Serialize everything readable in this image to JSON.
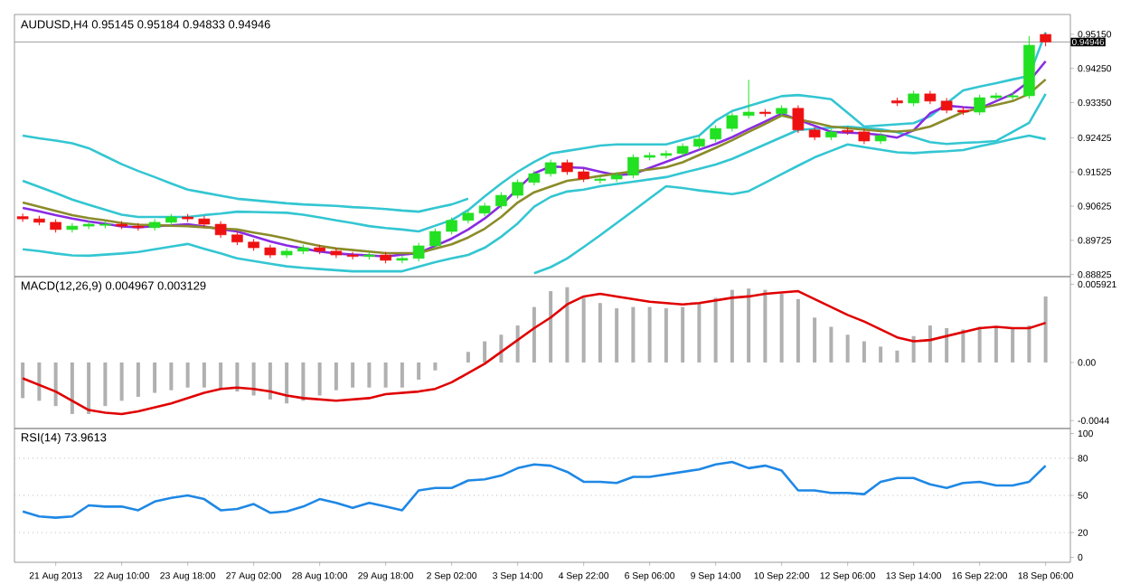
{
  "chart_data": [
    {
      "type": "candlestick",
      "title": "AUDUSD,H4 0.95145 0.95184 0.94833 0.94946",
      "categories": [
        null,
        null,
        null,
        null,
        null,
        null,
        null,
        null,
        null,
        null,
        null,
        null,
        null,
        null,
        null,
        null,
        null,
        null,
        null,
        null,
        null,
        null,
        null,
        null,
        null,
        null,
        null,
        null,
        null,
        null,
        null,
        null,
        null,
        null,
        null,
        null,
        null,
        null,
        null,
        null,
        null,
        null,
        null,
        null,
        null,
        null,
        null,
        null,
        null,
        null,
        null,
        null,
        null,
        null,
        null,
        null,
        null,
        null,
        null,
        null,
        null,
        null,
        null
      ],
      "ohlc": [
        [
          0.9035,
          0.9043,
          0.9021,
          0.9029
        ],
        [
          0.9029,
          0.9037,
          0.9012,
          0.902
        ],
        [
          0.902,
          0.9028,
          0.8993,
          0.9001
        ],
        [
          0.9001,
          0.9018,
          0.8993,
          0.901
        ],
        [
          0.901,
          0.9023,
          0.9002,
          0.9015
        ],
        [
          0.9012,
          0.9023,
          0.9004,
          0.9015
        ],
        [
          0.9015,
          0.9023,
          0.9002,
          0.901
        ],
        [
          0.901,
          0.9018,
          0.8998,
          0.9006
        ],
        [
          0.9006,
          0.9028,
          0.8998,
          0.902
        ],
        [
          0.902,
          0.9042,
          0.9012,
          0.9034
        ],
        [
          0.9034,
          0.9042,
          0.9021,
          0.9029
        ],
        [
          0.9029,
          0.9037,
          0.9007,
          0.9015
        ],
        [
          0.9015,
          0.9023,
          0.8979,
          0.8987
        ],
        [
          0.8987,
          0.8995,
          0.896,
          0.8968
        ],
        [
          0.8968,
          0.8976,
          0.8945,
          0.8953
        ],
        [
          0.8953,
          0.8961,
          0.8926,
          0.8934
        ],
        [
          0.8934,
          0.8952,
          0.8926,
          0.8944
        ],
        [
          0.8944,
          0.8961,
          0.8936,
          0.8953
        ],
        [
          0.8953,
          0.8961,
          0.8936,
          0.8944
        ],
        [
          0.8944,
          0.8952,
          0.8926,
          0.8934
        ],
        [
          0.8934,
          0.8942,
          0.8922,
          0.893
        ],
        [
          0.893,
          0.8942,
          0.8922,
          0.8934
        ],
        [
          0.8934,
          0.8942,
          0.8912,
          0.892
        ],
        [
          0.892,
          0.8933,
          0.8912,
          0.8925
        ],
        [
          0.8925,
          0.8966,
          0.8917,
          0.8958
        ],
        [
          0.8958,
          0.9004,
          0.895,
          0.8996
        ],
        [
          0.8996,
          0.9033,
          0.8988,
          0.9025
        ],
        [
          0.9025,
          0.9052,
          0.9017,
          0.9044
        ],
        [
          0.9044,
          0.9071,
          0.9036,
          0.9063
        ],
        [
          0.9063,
          0.9099,
          0.9055,
          0.9091
        ],
        [
          0.9091,
          0.9133,
          0.9083,
          0.9125
        ],
        [
          0.9125,
          0.9156,
          0.9117,
          0.9148
        ],
        [
          0.9148,
          0.9185,
          0.914,
          0.9177
        ],
        [
          0.9177,
          0.9185,
          0.9145,
          0.9153
        ],
        [
          0.9153,
          0.9161,
          0.9126,
          0.9134
        ],
        [
          0.913,
          0.9142,
          0.9122,
          0.9134
        ],
        [
          0.9134,
          0.9152,
          0.9126,
          0.9144
        ],
        [
          0.9144,
          0.9199,
          0.9136,
          0.9191
        ],
        [
          0.9191,
          0.9204,
          0.9183,
          0.9196
        ],
        [
          0.9196,
          0.9209,
          0.9188,
          0.9201
        ],
        [
          0.9201,
          0.9228,
          0.9193,
          0.922
        ],
        [
          0.922,
          0.9247,
          0.9212,
          0.9239
        ],
        [
          0.9239,
          0.9275,
          0.9231,
          0.9267
        ],
        [
          0.9267,
          0.9309,
          0.9259,
          0.9301
        ],
        [
          0.9301,
          0.9395,
          0.9293,
          0.931
        ],
        [
          0.931,
          0.9318,
          0.9298,
          0.9306
        ],
        [
          0.9306,
          0.9328,
          0.9298,
          0.932
        ],
        [
          0.932,
          0.9328,
          0.9255,
          0.9263
        ],
        [
          0.9263,
          0.9271,
          0.9236,
          0.9244
        ],
        [
          0.9244,
          0.9266,
          0.9236,
          0.9258
        ],
        [
          0.9262,
          0.927,
          0.925,
          0.9258
        ],
        [
          0.9258,
          0.9266,
          0.9226,
          0.9234
        ],
        [
          0.9234,
          0.9256,
          0.9226,
          0.9248
        ],
        [
          0.934,
          0.9348,
          0.9326,
          0.9334
        ],
        [
          0.9334,
          0.9366,
          0.9326,
          0.9358
        ],
        [
          0.9358,
          0.9366,
          0.9331,
          0.9339
        ],
        [
          0.9339,
          0.9347,
          0.9307,
          0.9315
        ],
        [
          0.9315,
          0.9323,
          0.9302,
          0.931
        ],
        [
          0.931,
          0.9356,
          0.9302,
          0.9348
        ],
        [
          0.9348,
          0.9361,
          0.934,
          0.9353
        ],
        [
          0.935,
          0.9361,
          0.9342,
          0.9353
        ],
        [
          0.9353,
          0.951,
          0.9345,
          0.9486
        ],
        [
          0.95145,
          0.95184,
          0.94833,
          0.94946
        ]
      ],
      "colors": [
        "#ee1111",
        "#ee1111",
        "#ee1111",
        "#22e022",
        "#22e022",
        "#22e022",
        "#ee1111",
        "#ee1111",
        "#22e022",
        "#22e022",
        "#ee1111",
        "#ee1111",
        "#ee1111",
        "#ee1111",
        "#ee1111",
        "#ee1111",
        "#22e022",
        "#22e022",
        "#ee1111",
        "#ee1111",
        "#ee1111",
        "#22e022",
        "#ee1111",
        "#22e022",
        "#22e022",
        "#22e022",
        "#22e022",
        "#22e022",
        "#22e022",
        "#22e022",
        "#22e022",
        "#22e022",
        "#22e022",
        "#ee1111",
        "#ee1111",
        "#22e022",
        "#22e022",
        "#22e022",
        "#22e022",
        "#22e022",
        "#22e022",
        "#22e022",
        "#22e022",
        "#22e022",
        "#22e022",
        "#ee1111",
        "#22e022",
        "#ee1111",
        "#ee1111",
        "#22e022",
        "#ee1111",
        "#ee1111",
        "#22e022",
        "#ee1111",
        "#22e022",
        "#ee1111",
        "#ee1111",
        "#ee1111",
        "#22e022",
        "#22e022",
        "#22e022",
        "#22e022",
        "#ee1111"
      ],
      "series": [
        {
          "type": "line",
          "color": "#33c6d2",
          "values": [
            0.9248,
            0.9241,
            0.9235,
            0.9228,
            0.9215,
            0.9194,
            0.9173,
            0.9155,
            0.9139,
            0.9122,
            0.9106,
            0.9098,
            0.909,
            0.9082,
            0.9078,
            0.9074,
            0.907,
            0.9067,
            0.9065,
            0.9063,
            0.906,
            0.9058,
            0.9055,
            0.9051,
            0.9048,
            0.9058,
            0.9067,
            0.9082,
            null,
            null,
            null,
            null,
            null,
            null,
            null,
            null,
            null,
            null,
            null,
            null,
            null,
            null,
            null,
            null,
            null,
            null,
            null,
            null,
            null,
            null,
            null,
            null,
            null,
            null,
            null,
            null,
            null,
            null,
            null,
            null,
            null,
            null,
            null
          ]
        },
        {
          "type": "line",
          "color": "#33c6d2",
          "values": [
            0.9129,
            0.9113,
            0.9097,
            0.908,
            0.9066,
            0.9053,
            0.904,
            0.9034,
            0.9034,
            0.9034,
            0.9034,
            0.9039,
            0.9043,
            0.9048,
            0.9047,
            0.9046,
            0.9045,
            0.904,
            0.9033,
            0.9025,
            0.9018,
            0.901,
            0.9005,
            0.9001,
            0.8996,
            0.9011,
            0.9026,
            0.9052,
            0.9088,
            0.9122,
            0.9153,
            0.9179,
            0.9201,
            0.9208,
            0.9215,
            0.9222,
            0.9225,
            0.9225,
            0.9225,
            0.9225,
            0.9237,
            0.9248,
            0.9287,
            0.9313,
            0.9326,
            0.9339,
            0.9352,
            0.9355,
            0.935,
            0.9344,
            0.9308,
            0.9272,
            0.9275,
            0.9278,
            0.9281,
            0.9299,
            0.9333,
            0.9367,
            0.9377,
            0.9386,
            0.9396,
            0.9405,
            0.952
          ]
        },
        {
          "type": "line",
          "color": "#33c6d2",
          "values": [
            0.8949,
            0.8944,
            0.8938,
            0.8933,
            0.8932,
            0.8935,
            0.8938,
            0.8942,
            0.8949,
            0.8956,
            0.8963,
            0.895,
            0.8938,
            0.8925,
            0.8918,
            0.8911,
            0.8904,
            0.89,
            0.8897,
            0.8894,
            0.8891,
            0.8891,
            0.8891,
            0.8891,
            0.8903,
            0.8915,
            0.8925,
            0.8934,
            0.8953,
            0.8982,
            0.9017,
            0.9061,
            0.9087,
            0.9101,
            0.9106,
            0.9115,
            0.9121,
            0.9127,
            0.9133,
            0.9139,
            0.915,
            0.9161,
            0.9172,
            0.9187,
            0.9206,
            0.9225,
            0.9244,
            0.9263,
            0.9266,
            0.9269,
            0.9272,
            0.9268,
            0.9265,
            0.9257,
            0.9244,
            0.9231,
            0.9226,
            0.9229,
            0.9231,
            0.9234,
            0.9258,
            0.9282,
            0.9358
          ]
        },
        {
          "type": "line",
          "color": "#33c6d2",
          "values": [
            null,
            null,
            null,
            null,
            null,
            null,
            null,
            null,
            null,
            null,
            null,
            null,
            null,
            null,
            null,
            null,
            null,
            null,
            null,
            null,
            null,
            null,
            null,
            null,
            null,
            null,
            null,
            null,
            null,
            null,
            null,
            0.8886,
            0.8902,
            0.8925,
            0.8955,
            0.8986,
            0.9018,
            0.905,
            0.9083,
            0.9115,
            0.911,
            0.9104,
            0.9099,
            0.9094,
            0.9102,
            0.9124,
            0.9147,
            0.9169,
            0.9191,
            0.9208,
            0.9225,
            0.9218,
            0.9211,
            0.9204,
            0.9202,
            0.9205,
            0.9207,
            0.921,
            0.922,
            0.9229,
            0.9239,
            0.9248,
            0.9239
          ]
        },
        {
          "type": "line",
          "color": "#8a2be2",
          "values": [
            0.9058,
            0.9049,
            0.9039,
            0.903,
            0.9022,
            0.9016,
            0.9009,
            0.9007,
            0.901,
            0.9012,
            0.9015,
            0.9009,
            0.9002,
            0.8996,
            0.8983,
            0.897,
            0.8959,
            0.8951,
            0.8943,
            0.8938,
            0.8935,
            0.8933,
            0.893,
            0.8935,
            0.8939,
            0.8958,
            0.8977,
            0.9001,
            0.903,
            0.9065,
            0.9108,
            0.9149,
            0.9167,
            0.9165,
            0.9163,
            0.9153,
            0.9144,
            0.9147,
            0.9163,
            0.9179,
            0.9195,
            0.9211,
            0.9226,
            0.9244,
            0.9265,
            0.9285,
            0.9306,
            0.929,
            0.9274,
            0.9258,
            0.9256,
            0.9254,
            0.925,
            0.9243,
            0.9262,
            0.9307,
            0.9327,
            0.9323,
            0.932,
            0.9339,
            0.9358,
            0.9391,
            0.9444
          ]
        },
        {
          "type": "line",
          "color": "#8b8b2a",
          "values": [
            0.9072,
            0.9061,
            0.905,
            0.9039,
            0.9031,
            0.9025,
            0.9018,
            0.9014,
            0.9013,
            0.9011,
            0.901,
            0.9007,
            0.9004,
            0.9001,
            0.8993,
            0.8986,
            0.8977,
            0.8967,
            0.8958,
            0.8951,
            0.8947,
            0.8943,
            0.8939,
            0.8939,
            0.8939,
            0.8951,
            0.8962,
            0.898,
            0.9003,
            0.9034,
            0.9072,
            0.9099,
            0.9114,
            0.9129,
            0.9135,
            0.9142,
            0.9148,
            0.9154,
            0.9159,
            0.9165,
            0.9178,
            0.9197,
            0.9216,
            0.9236,
            0.9258,
            0.9279,
            0.9301,
            0.9291,
            0.9282,
            0.9272,
            0.9268,
            0.9264,
            0.926,
            0.9259,
            0.9262,
            0.9272,
            0.9291,
            0.931,
            0.932,
            0.9329,
            0.9339,
            0.9358,
            0.9396
          ]
        }
      ],
      "ylim": [
        0.8877,
        0.9567
      ],
      "yticks": [
        {
          "value": 0.9515,
          "label": "0.95150"
        },
        {
          "value": 0.9425,
          "label": "0.94250"
        },
        {
          "value": 0.9335,
          "label": "0.93350"
        },
        {
          "value": 0.92425,
          "label": "0.92425"
        },
        {
          "value": 0.91525,
          "label": "0.91525"
        },
        {
          "value": 0.90625,
          "label": "0.90625"
        },
        {
          "value": 0.89725,
          "label": "0.89725"
        },
        {
          "value": 0.88825,
          "label": "0.88825"
        }
      ],
      "ref_lines": [
        {
          "axis": "y",
          "value": 0.94946,
          "label": "0.94946",
          "color": "#a0a0a0"
        }
      ],
      "tick_labels": "y"
    },
    {
      "type": "bar",
      "title": "MACD(12,26,9) 0.004967 0.003129",
      "categories": [
        null,
        null,
        null,
        null,
        null,
        null,
        null,
        null,
        null,
        null,
        null,
        null,
        null,
        null,
        null,
        null,
        null,
        null,
        null,
        null,
        null,
        null,
        null,
        null,
        null,
        null,
        null,
        null,
        null,
        null,
        null,
        null,
        null,
        null,
        null,
        null,
        null,
        null,
        null,
        null,
        null,
        null,
        null,
        null,
        null,
        null,
        null,
        null,
        null,
        null,
        null,
        null,
        null,
        null,
        null,
        null,
        null,
        null,
        null,
        null,
        null,
        null,
        null
      ],
      "series": [
        {
          "type": "bar",
          "color": "#b0b0b0",
          "values": [
            -0.0027,
            -0.0029,
            -0.0033,
            -0.0039,
            -0.0039,
            -0.0033,
            -0.0029,
            -0.0026,
            -0.0023,
            -0.0021,
            -0.0019,
            -0.0019,
            -0.002,
            -0.0022,
            -0.0025,
            -0.0028,
            -0.0031,
            -0.0029,
            -0.0025,
            -0.0021,
            -0.0019,
            -0.0019,
            -0.0019,
            -0.0019,
            -0.0013,
            -0.0006,
            null,
            0.0008,
            0.0016,
            0.0021,
            0.0028,
            0.0042,
            0.0054,
            0.0057,
            0.0049,
            0.0045,
            0.0041,
            0.0042,
            0.0042,
            0.0041,
            0.0042,
            0.0045,
            0.0049,
            0.0055,
            0.0056,
            0.0055,
            0.0052,
            0.0048,
            0.0034,
            0.0027,
            0.0021,
            0.0016,
            0.0012,
            0.0009,
            0.002,
            0.0028,
            0.0026,
            0.0025,
            0.0027,
            0.0026,
            0.0026,
            0.0028,
            0.005
          ]
        },
        {
          "type": "line",
          "color": "#e00000",
          "values": [
            -0.0012,
            -0.0017,
            -0.0022,
            -0.0029,
            -0.0036,
            -0.0038,
            -0.0039,
            -0.0037,
            -0.0034,
            -0.0031,
            -0.0027,
            -0.0023,
            -0.002,
            -0.0019,
            -0.002,
            -0.0022,
            -0.0025,
            -0.0027,
            -0.0028,
            -0.0029,
            -0.0028,
            -0.0027,
            -0.0024,
            -0.0023,
            -0.0022,
            -0.002,
            -0.0015,
            -0.0008,
            -0.0001,
            0.0008,
            0.0017,
            0.0026,
            0.0034,
            0.0044,
            0.005,
            0.0052,
            0.005,
            0.0048,
            0.0046,
            0.0045,
            0.0044,
            0.0045,
            0.0047,
            0.0049,
            0.005,
            0.0052,
            0.0053,
            0.0054,
            0.0048,
            0.0042,
            0.0036,
            0.0031,
            0.0025,
            0.0019,
            0.0016,
            0.0017,
            0.002,
            0.0023,
            0.0026,
            0.0027,
            0.0026,
            0.0026,
            0.003
          ]
        }
      ],
      "ylim": [
        -0.005,
        0.0065
      ],
      "yticks": [
        0.005921,
        {
          "value": 0,
          "label": "0.00"
        },
        -0.0044
      ],
      "tick_labels": "y"
    },
    {
      "type": "line",
      "title": "RSI(14) 73.9613",
      "categories": [
        null,
        null,
        "21 Aug 2013",
        null,
        null,
        null,
        "22 Aug 10:00",
        null,
        null,
        null,
        "23 Aug 18:00",
        null,
        null,
        null,
        "27 Aug 02:00",
        null,
        null,
        null,
        "28 Aug 10:00",
        null,
        null,
        null,
        "29 Aug 18:00",
        null,
        null,
        null,
        "2 Sep 02:00",
        null,
        null,
        null,
        "3 Sep 14:00",
        null,
        null,
        null,
        "4 Sep 22:00",
        null,
        null,
        null,
        "6 Sep 06:00",
        null,
        null,
        null,
        "9 Sep 14:00",
        null,
        null,
        null,
        "10 Sep 22:00",
        null,
        null,
        null,
        "12 Sep 06:00",
        null,
        null,
        null,
        "13 Sep 14:00",
        null,
        null,
        null,
        "16 Sep 22:00",
        null,
        null,
        null,
        "18 Sep 06:00"
      ],
      "series": [
        {
          "color": "#1e88e5",
          "values": [
            37,
            33,
            32,
            33,
            42,
            41,
            41,
            38,
            45,
            48,
            50,
            47,
            38,
            39,
            43,
            36,
            37,
            41,
            47,
            44,
            40,
            44,
            41,
            38,
            54,
            56,
            56,
            62,
            63,
            66,
            72,
            75,
            74,
            69,
            61,
            61,
            60,
            65,
            65,
            67,
            69,
            71,
            75,
            77,
            72,
            74,
            70,
            54,
            54,
            52,
            52,
            51,
            61,
            64,
            64,
            59,
            56,
            60,
            61,
            58,
            58,
            61,
            74
          ]
        }
      ],
      "ylim": [
        -4,
        104
      ],
      "yticks": [
        100,
        80,
        50,
        20,
        0
      ],
      "ref_lines": [
        {
          "axis": "y",
          "value": 80,
          "color": "#b8b8b8",
          "line_style": "dotted"
        },
        {
          "axis": "y",
          "value": 50,
          "color": "#b8b8b8",
          "line_style": "dotted"
        },
        {
          "axis": "y",
          "value": 20,
          "color": "#b8b8b8",
          "line_style": "dotted"
        }
      ]
    }
  ]
}
